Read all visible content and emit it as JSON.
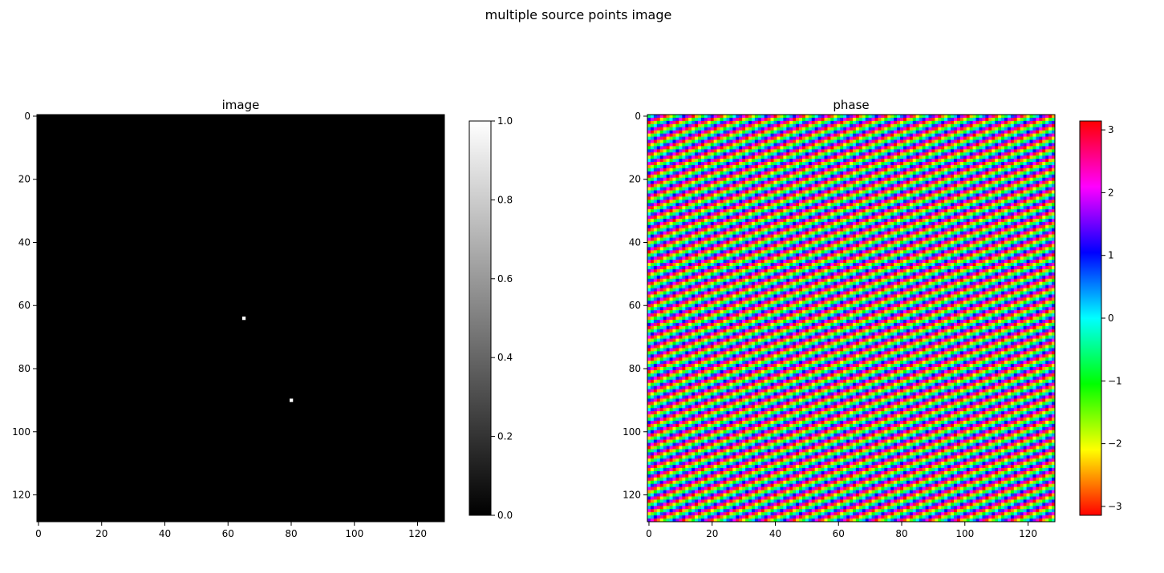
{
  "figure": {
    "suptitle": "multiple source points image"
  },
  "chart_data": [
    {
      "type": "heatmap",
      "title": "image",
      "xlabel": "",
      "ylabel": "",
      "grid_size": [
        129,
        129
      ],
      "xlim": [
        -0.5,
        128.5
      ],
      "ylim": [
        128.5,
        -0.5
      ],
      "x_ticks": [
        0,
        20,
        40,
        60,
        80,
        100,
        120
      ],
      "y_ticks": [
        0,
        20,
        40,
        60,
        80,
        100,
        120
      ],
      "x_tick_labels": [
        "0",
        "20",
        "40",
        "60",
        "80",
        "100",
        "120"
      ],
      "y_tick_labels": [
        "0",
        "20",
        "40",
        "60",
        "80",
        "100",
        "120"
      ],
      "colormap": "gray",
      "background_value": 0,
      "points": [
        {
          "x": 65,
          "y": 64,
          "value": 1
        },
        {
          "x": 80,
          "y": 90,
          "value": 1
        }
      ],
      "colorbar": {
        "range": [
          0,
          1
        ],
        "ticks": [
          0,
          0.2,
          0.4,
          0.6,
          0.8,
          1.0
        ],
        "tick_labels": [
          "0.0",
          "0.2",
          "0.4",
          "0.6",
          "0.8",
          "1.0"
        ],
        "colors": [
          "#000000",
          "#ffffff"
        ]
      }
    },
    {
      "type": "heatmap",
      "title": "phase",
      "xlabel": "",
      "ylabel": "",
      "grid_size": [
        129,
        129
      ],
      "xlim": [
        -0.5,
        128.5
      ],
      "ylim": [
        128.5,
        -0.5
      ],
      "x_ticks": [
        0,
        20,
        40,
        60,
        80,
        100,
        120
      ],
      "y_ticks": [
        0,
        20,
        40,
        60,
        80,
        100,
        120
      ],
      "x_tick_labels": [
        "0",
        "20",
        "40",
        "60",
        "80",
        "100",
        "120"
      ],
      "y_tick_labels": [
        "0",
        "20",
        "40",
        "60",
        "80",
        "100",
        "120"
      ],
      "colormap": "hsv",
      "value_range": [
        -3.14159,
        3.14159
      ],
      "stripe_direction": "diagonal, rising from lower-left to upper-right",
      "colorbar": {
        "range": [
          -3.14159,
          3.14159
        ],
        "ticks": [
          -3,
          -2,
          -1,
          0,
          1,
          2,
          3
        ],
        "tick_labels": [
          "−3",
          "−2",
          "−1",
          "0",
          "1",
          "2",
          "3"
        ],
        "colors": [
          "#ff0000",
          "#ffff00",
          "#00ff00",
          "#00ffff",
          "#0000ff",
          "#ff00ff",
          "#ff0000"
        ]
      }
    }
  ]
}
